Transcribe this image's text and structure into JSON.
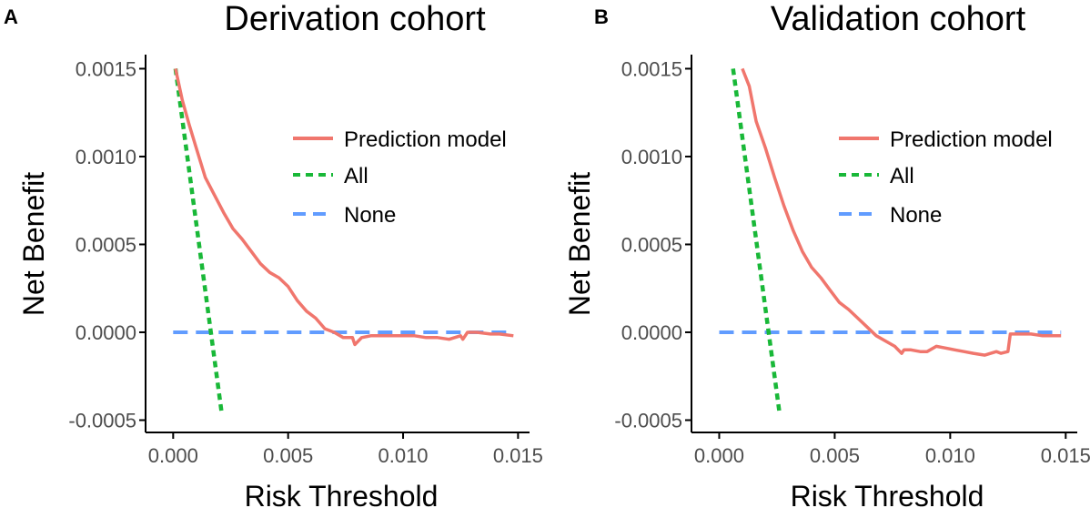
{
  "colors": {
    "model": "#F0766D",
    "all": "#19B838",
    "none": "#619CFF",
    "axis": "#000000",
    "tick_text": "#4D4D4D"
  },
  "chart_data": [
    {
      "type": "line",
      "panel_label": "A",
      "title": "Derivation cohort",
      "xlabel": "Risk Threshold",
      "ylabel": "Net Benefit",
      "xlim": [
        -0.0012,
        0.0155
      ],
      "ylim": [
        -0.00057,
        0.00158
      ],
      "xticks": [
        0.0,
        0.005,
        0.01,
        0.015
      ],
      "xtick_labels": [
        "0.000",
        "0.005",
        "0.010",
        "0.015"
      ],
      "yticks": [
        -0.0005,
        0.0,
        0.0005,
        0.001,
        0.0015
      ],
      "ytick_labels": [
        "-0.0005",
        "0.0000",
        "0.0005",
        "0.0010",
        "0.0015"
      ],
      "legend": {
        "position": "top-right",
        "items": [
          "Prediction model",
          "All",
          "None"
        ]
      },
      "series": [
        {
          "name": "Prediction model",
          "style": "solid",
          "x": [
            0.0001,
            0.0004,
            0.0007,
            0.001,
            0.0014,
            0.0018,
            0.0022,
            0.0026,
            0.003,
            0.0034,
            0.0038,
            0.0042,
            0.0046,
            0.005,
            0.0054,
            0.0058,
            0.0062,
            0.0066,
            0.007,
            0.0074,
            0.0078,
            0.0079,
            0.0082,
            0.0086,
            0.009,
            0.0095,
            0.01,
            0.0105,
            0.011,
            0.0115,
            0.012,
            0.0125,
            0.0126,
            0.0128,
            0.0132,
            0.0138,
            0.0142,
            0.0148
          ],
          "y": [
            0.0015,
            0.00132,
            0.00118,
            0.00105,
            0.00088,
            0.00078,
            0.00068,
            0.00059,
            0.00053,
            0.00046,
            0.00039,
            0.00034,
            0.00031,
            0.00026,
            0.00018,
            0.00012,
            8e-05,
            2e-05,
            0.0,
            -3e-05,
            -3e-05,
            -7e-05,
            -3e-05,
            -2e-05,
            -2e-05,
            -2e-05,
            -2e-05,
            -2e-05,
            -3e-05,
            -3e-05,
            -4e-05,
            -2e-05,
            -4e-05,
            0.0,
            0.0,
            -1e-05,
            -1e-05,
            -2e-05
          ]
        },
        {
          "name": "All",
          "style": "dotted",
          "x": [
            0.0001,
            0.0021
          ],
          "y": [
            0.0015,
            -0.00045
          ]
        },
        {
          "name": "None",
          "style": "dashed",
          "x": [
            0.0,
            0.0148
          ],
          "y": [
            0.0,
            0.0
          ]
        }
      ]
    },
    {
      "type": "line",
      "panel_label": "B",
      "title": "Validation cohort",
      "xlabel": "Risk Threshold",
      "ylabel": "Net Benefit",
      "xlim": [
        -0.0012,
        0.0155
      ],
      "ylim": [
        -0.00057,
        0.00158
      ],
      "xticks": [
        0.0,
        0.005,
        0.01,
        0.015
      ],
      "xtick_labels": [
        "0.000",
        "0.005",
        "0.010",
        "0.015"
      ],
      "yticks": [
        -0.0005,
        0.0,
        0.0005,
        0.001,
        0.0015
      ],
      "ytick_labels": [
        "-0.0005",
        "0.0000",
        "0.0005",
        "0.0010",
        "0.0015"
      ],
      "legend": {
        "position": "top-right",
        "items": [
          "Prediction model",
          "All",
          "None"
        ]
      },
      "series": [
        {
          "name": "Prediction model",
          "style": "solid",
          "x": [
            0.001,
            0.0013,
            0.0016,
            0.002,
            0.0024,
            0.0028,
            0.0032,
            0.0036,
            0.004,
            0.0044,
            0.0048,
            0.0052,
            0.0056,
            0.006,
            0.0064,
            0.0068,
            0.0072,
            0.0076,
            0.0079,
            0.008,
            0.0083,
            0.0087,
            0.009,
            0.0094,
            0.0098,
            0.0102,
            0.0106,
            0.011,
            0.0115,
            0.012,
            0.0122,
            0.0125,
            0.0126,
            0.0127,
            0.013,
            0.0135,
            0.014,
            0.0148
          ],
          "y": [
            0.0015,
            0.0014,
            0.0012,
            0.00105,
            0.00088,
            0.00072,
            0.00058,
            0.00046,
            0.00037,
            0.00031,
            0.00024,
            0.00017,
            0.00013,
            8e-05,
            3e-05,
            -2e-05,
            -5e-05,
            -8e-05,
            -0.00012,
            -0.0001,
            -0.0001,
            -0.00011,
            -0.00011,
            -8e-05,
            -9e-05,
            -0.0001,
            -0.00011,
            -0.00012,
            -0.00013,
            -0.00011,
            -0.00012,
            -0.00011,
            -1e-05,
            -1e-05,
            -1e-05,
            -1e-05,
            -2e-05,
            -2e-05
          ]
        },
        {
          "name": "All",
          "style": "dotted",
          "x": [
            0.0006,
            0.0026
          ],
          "y": [
            0.0015,
            -0.00045
          ]
        },
        {
          "name": "None",
          "style": "dashed",
          "x": [
            0.0,
            0.0148
          ],
          "y": [
            0.0,
            0.0
          ]
        }
      ]
    }
  ]
}
